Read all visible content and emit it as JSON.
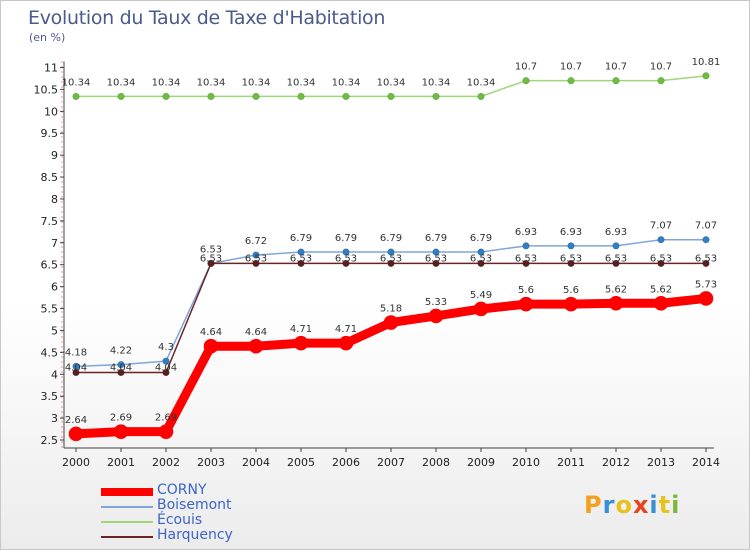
{
  "title": "Evolution du Taux de Taxe d'Habitation",
  "subtitle": "(en %)",
  "logo": {
    "text": "Proxiti",
    "letters": [
      {
        "ch": "P",
        "color": "#f2a01e"
      },
      {
        "ch": "r",
        "color": "#3a8fd6"
      },
      {
        "ch": "o",
        "color": "#e8c21c"
      },
      {
        "ch": "x",
        "color": "#e8431c"
      },
      {
        "ch": "i",
        "color": "#3a8fd6"
      },
      {
        "ch": "t",
        "color": "#e8c21c"
      },
      {
        "ch": "i",
        "color": "#7ab83a"
      }
    ]
  },
  "chart_data": {
    "type": "line",
    "title": "Evolution du Taux de Taxe d'Habitation",
    "ylabel": "(en %)",
    "xlabel": "",
    "x": [
      "2000",
      "2001",
      "2002",
      "2003",
      "2004",
      "2005",
      "2006",
      "2007",
      "2008",
      "2009",
      "2010",
      "2011",
      "2012",
      "2013",
      "2014"
    ],
    "ylim": [
      2.5,
      11
    ],
    "yticks": [
      "2.5",
      "3",
      "3.5",
      "4",
      "4.5",
      "5",
      "5.5",
      "6",
      "6.5",
      "7",
      "7.5",
      "8",
      "8.5",
      "9",
      "9.5",
      "10",
      "10.5",
      "11"
    ],
    "grid": false,
    "legend_position": "bottom-left",
    "series": [
      {
        "name": "CORNY",
        "color": "#ff0000",
        "marker": "#ff0000",
        "width": 9,
        "values": [
          2.64,
          2.69,
          2.69,
          4.64,
          4.64,
          4.71,
          4.71,
          5.18,
          5.33,
          5.49,
          5.6,
          5.6,
          5.62,
          5.62,
          5.73
        ],
        "labels": [
          "2.64",
          "2.69",
          "2.69",
          "4.64",
          "4.64",
          "4.71",
          "4.71",
          "5.18",
          "5.33",
          "5.49",
          "5.6",
          "5.6",
          "5.62",
          "5.62",
          "5.73"
        ]
      },
      {
        "name": "Boisemont",
        "color": "#7ea6d8",
        "marker": "#2c7fc8",
        "width": 1.5,
        "values": [
          4.18,
          4.22,
          4.3,
          6.53,
          6.72,
          6.79,
          6.79,
          6.79,
          6.79,
          6.79,
          6.93,
          6.93,
          6.93,
          7.07,
          7.07
        ],
        "labels": [
          "4.18",
          "4.22",
          "4.3",
          "6.53",
          "6.72",
          "6.79",
          "6.79",
          "6.79",
          "6.79",
          "6.79",
          "6.93",
          "6.93",
          "6.93",
          "7.07",
          "7.07"
        ]
      },
      {
        "name": "Écouis",
        "color": "#9fd67a",
        "marker": "#6cbf3a",
        "width": 1.5,
        "values": [
          10.34,
          10.34,
          10.34,
          10.34,
          10.34,
          10.34,
          10.34,
          10.34,
          10.34,
          10.34,
          10.7,
          10.7,
          10.7,
          10.7,
          10.81
        ],
        "labels": [
          "10.34",
          "10.34",
          "10.34",
          "10.34",
          "10.34",
          "10.34",
          "10.34",
          "10.34",
          "10.34",
          "10.34",
          "10.7",
          "10.7",
          "10.7",
          "10.7",
          "10.81"
        ]
      },
      {
        "name": "Harquency",
        "color": "#6b2424",
        "marker": "#5a1e1e",
        "width": 1.5,
        "values": [
          4.04,
          4.04,
          4.04,
          6.53,
          6.53,
          6.53,
          6.53,
          6.53,
          6.53,
          6.53,
          6.53,
          6.53,
          6.53,
          6.53,
          6.53
        ],
        "labels": [
          "4.04",
          "4.04",
          "4.04",
          "6.53",
          "6.53",
          "6.53",
          "6.53",
          "6.53",
          "6.53",
          "6.53",
          "6.53",
          "6.53",
          "6.53",
          "6.53",
          "6.53"
        ]
      }
    ]
  }
}
